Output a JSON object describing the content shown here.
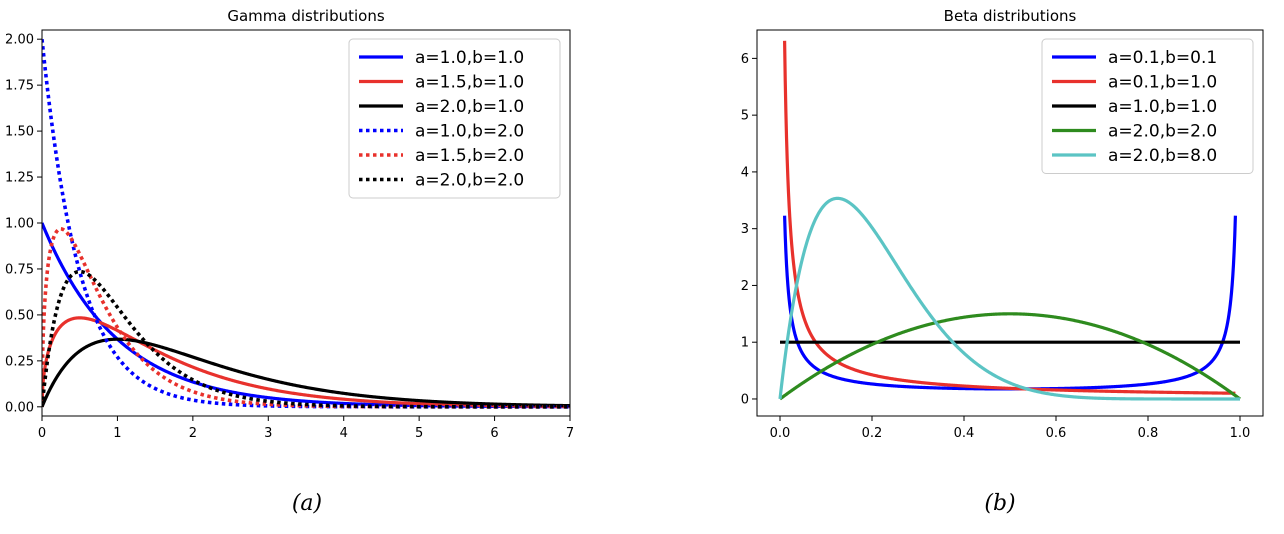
{
  "chart_data": [
    {
      "type": "line",
      "title": "Gamma distributions",
      "caption": "(a)",
      "xlim": [
        0,
        7
      ],
      "ylim": [
        -0.05,
        2.05
      ],
      "x_ticks": [
        0,
        1,
        2,
        3,
        4,
        5,
        6,
        7
      ],
      "x_tick_labels": [
        "0",
        "1",
        "2",
        "3",
        "4",
        "5",
        "6",
        "7"
      ],
      "y_ticks": [
        0,
        0.25,
        0.5,
        0.75,
        1.0,
        1.25,
        1.5,
        1.75,
        2.0
      ],
      "y_tick_labels": [
        "0.00",
        "0.25",
        "0.50",
        "0.75",
        "1.00",
        "1.25",
        "1.50",
        "1.75",
        "2.00"
      ],
      "legend_position": "top-right",
      "series": [
        {
          "name": "a=1.0,b=1.0",
          "family": "gamma",
          "a": 1.0,
          "b": 1.0,
          "color": "#0000ff",
          "style": "solid"
        },
        {
          "name": "a=1.5,b=1.0",
          "family": "gamma",
          "a": 1.5,
          "b": 1.0,
          "color": "#e8312c",
          "style": "solid"
        },
        {
          "name": "a=2.0,b=1.0",
          "family": "gamma",
          "a": 2.0,
          "b": 1.0,
          "color": "#000000",
          "style": "solid"
        },
        {
          "name": "a=1.0,b=2.0",
          "family": "gamma",
          "a": 1.0,
          "b": 2.0,
          "color": "#0000ff",
          "style": "dotted"
        },
        {
          "name": "a=1.5,b=2.0",
          "family": "gamma",
          "a": 1.5,
          "b": 2.0,
          "color": "#e8312c",
          "style": "dotted"
        },
        {
          "name": "a=2.0,b=2.0",
          "family": "gamma",
          "a": 2.0,
          "b": 2.0,
          "color": "#000000",
          "style": "dotted"
        }
      ]
    },
    {
      "type": "line",
      "title": "Beta distributions",
      "caption": "(b)",
      "xlim": [
        -0.05,
        1.05
      ],
      "ylim": [
        -0.3,
        6.5
      ],
      "x_ticks": [
        0,
        0.2,
        0.4,
        0.6,
        0.8,
        1.0
      ],
      "x_tick_labels": [
        "0.0",
        "0.2",
        "0.4",
        "0.6",
        "0.8",
        "1.0"
      ],
      "y_ticks": [
        0,
        1,
        2,
        3,
        4,
        5,
        6
      ],
      "y_tick_labels": [
        "0",
        "1",
        "2",
        "3",
        "4",
        "5",
        "6"
      ],
      "legend_position": "top-right",
      "series": [
        {
          "name": "a=0.1,b=0.1",
          "family": "beta",
          "a": 0.1,
          "b": 0.1,
          "color": "#0000ff",
          "style": "solid"
        },
        {
          "name": "a=0.1,b=1.0",
          "family": "beta",
          "a": 0.1,
          "b": 1.0,
          "color": "#e8312c",
          "style": "solid"
        },
        {
          "name": "a=1.0,b=1.0",
          "family": "beta",
          "a": 1.0,
          "b": 1.0,
          "color": "#000000",
          "style": "solid"
        },
        {
          "name": "a=2.0,b=2.0",
          "family": "beta",
          "a": 2.0,
          "b": 2.0,
          "color": "#2e8b1e",
          "style": "solid"
        },
        {
          "name": "a=2.0,b=8.0",
          "family": "beta",
          "a": 2.0,
          "b": 8.0,
          "color": "#5bc4c4",
          "style": "solid"
        }
      ]
    }
  ]
}
